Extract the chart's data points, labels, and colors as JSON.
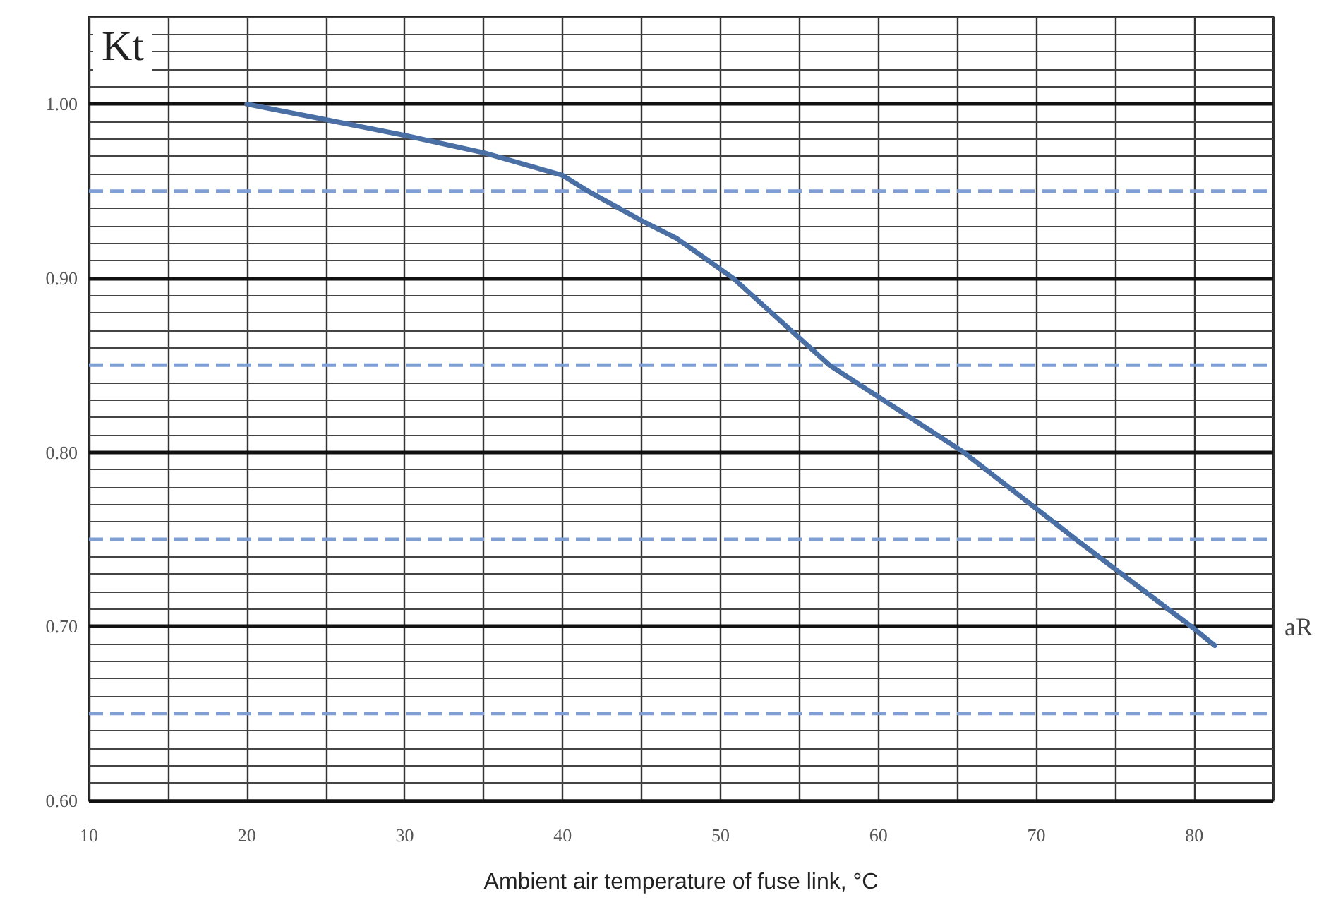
{
  "chart_data": {
    "type": "line",
    "ylabel": "Kt",
    "xlabel": "Ambient air temperature of fuse link, °C",
    "annotations": [
      "aR"
    ],
    "x": [
      20,
      25,
      30,
      35,
      40,
      41.6,
      45,
      47.2,
      50.8,
      56.9,
      65.4,
      72.5,
      79.8,
      81.3
    ],
    "series": [
      {
        "color": "#4a6fa5",
        "values": [
          1.0,
          0.991,
          0.982,
          0.972,
          0.959,
          0.95,
          0.933,
          0.923,
          0.9,
          0.85,
          0.8,
          0.75,
          0.7,
          0.689
        ]
      }
    ],
    "xlim": [
      10,
      85
    ],
    "xticks": [
      10,
      {
        "value": 15,
        "label": null
      },
      20,
      {
        "value": 25,
        "label": null
      },
      30,
      {
        "value": 35,
        "label": null
      },
      40,
      {
        "value": 45,
        "label": null
      },
      50,
      {
        "value": 55,
        "label": null
      },
      60,
      {
        "value": 65,
        "label": null
      },
      70,
      {
        "value": 75,
        "label": null
      },
      80,
      {
        "value": 85,
        "label": null
      }
    ],
    "ylim": [
      0.6,
      1.05
    ],
    "yticks": [
      {
        "value": 0.6,
        "label": "0.60"
      },
      {
        "value": 0.61,
        "label": null
      },
      {
        "value": 0.62,
        "label": null
      },
      {
        "value": 0.63,
        "label": null
      },
      {
        "value": 0.64,
        "label": null
      },
      {
        "value": 0.66,
        "label": null
      },
      {
        "value": 0.67,
        "label": null
      },
      {
        "value": 0.68,
        "label": null
      },
      {
        "value": 0.69,
        "label": null
      },
      {
        "value": 0.7,
        "label": "0.70"
      },
      {
        "value": 0.71,
        "label": null
      },
      {
        "value": 0.72,
        "label": null
      },
      {
        "value": 0.73,
        "label": null
      },
      {
        "value": 0.74,
        "label": null
      },
      {
        "value": 0.76,
        "label": null
      },
      {
        "value": 0.77,
        "label": null
      },
      {
        "value": 0.78,
        "label": null
      },
      {
        "value": 0.79,
        "label": null
      },
      {
        "value": 0.8,
        "label": "0.80"
      },
      {
        "value": 0.81,
        "label": null
      },
      {
        "value": 0.82,
        "label": null
      },
      {
        "value": 0.83,
        "label": null
      },
      {
        "value": 0.84,
        "label": null
      },
      {
        "value": 0.86,
        "label": null
      },
      {
        "value": 0.87,
        "label": null
      },
      {
        "value": 0.88,
        "label": null
      },
      {
        "value": 0.89,
        "label": null
      },
      {
        "value": 0.9,
        "label": "0.90"
      },
      {
        "value": 0.91,
        "label": null
      },
      {
        "value": 0.92,
        "label": null
      },
      {
        "value": 0.93,
        "label": null
      },
      {
        "value": 0.94,
        "label": null
      },
      {
        "value": 0.96,
        "label": null
      },
      {
        "value": 0.97,
        "label": null
      },
      {
        "value": 0.98,
        "label": null
      },
      {
        "value": 0.99,
        "label": null
      },
      {
        "value": 1.0,
        "label": "1.00"
      },
      {
        "value": 1.01,
        "label": null
      },
      {
        "value": 1.02,
        "label": null
      },
      {
        "value": 1.03,
        "label": null
      },
      {
        "value": 1.04,
        "label": null
      },
      {
        "value": 1.05,
        "label": null
      }
    ],
    "ref_lines": [
      {
        "axis": "y",
        "value": 0.95,
        "color": "#7f9fd4",
        "line_style": "dashed"
      },
      {
        "axis": "y",
        "value": 0.85,
        "color": "#7f9fd4",
        "line_style": "dashed"
      },
      {
        "axis": "y",
        "value": 0.75,
        "color": "#7f9fd4",
        "line_style": "dashed"
      },
      {
        "axis": "y",
        "value": 0.65,
        "color": "#7f9fd4",
        "line_style": "dashed"
      }
    ],
    "grid": true,
    "marker": "none",
    "line_style": "solid"
  }
}
